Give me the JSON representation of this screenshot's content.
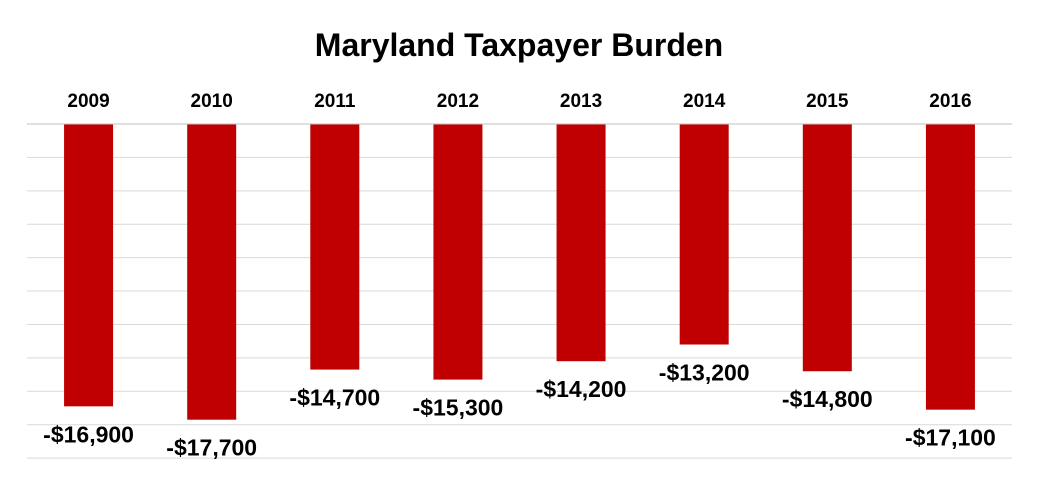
{
  "chart_data": {
    "type": "bar",
    "title": "Maryland Taxpayer Burden",
    "xlabel": "",
    "ylabel": "",
    "categories": [
      "2009",
      "2010",
      "2011",
      "2012",
      "2013",
      "2014",
      "2015",
      "2016"
    ],
    "values": [
      -16900,
      -17700,
      -14700,
      -15300,
      -14200,
      -13200,
      -14800,
      -17100
    ],
    "data_labels": [
      "-$16,900",
      "-$17,700",
      "-$14,700",
      "-$15,300",
      "-$14,200",
      "-$13,200",
      "-$14,800",
      "-$17,100"
    ],
    "ylim": [
      -20000,
      0
    ],
    "grid": true,
    "category_axis_position": "top",
    "bar_color": "#c00000"
  }
}
